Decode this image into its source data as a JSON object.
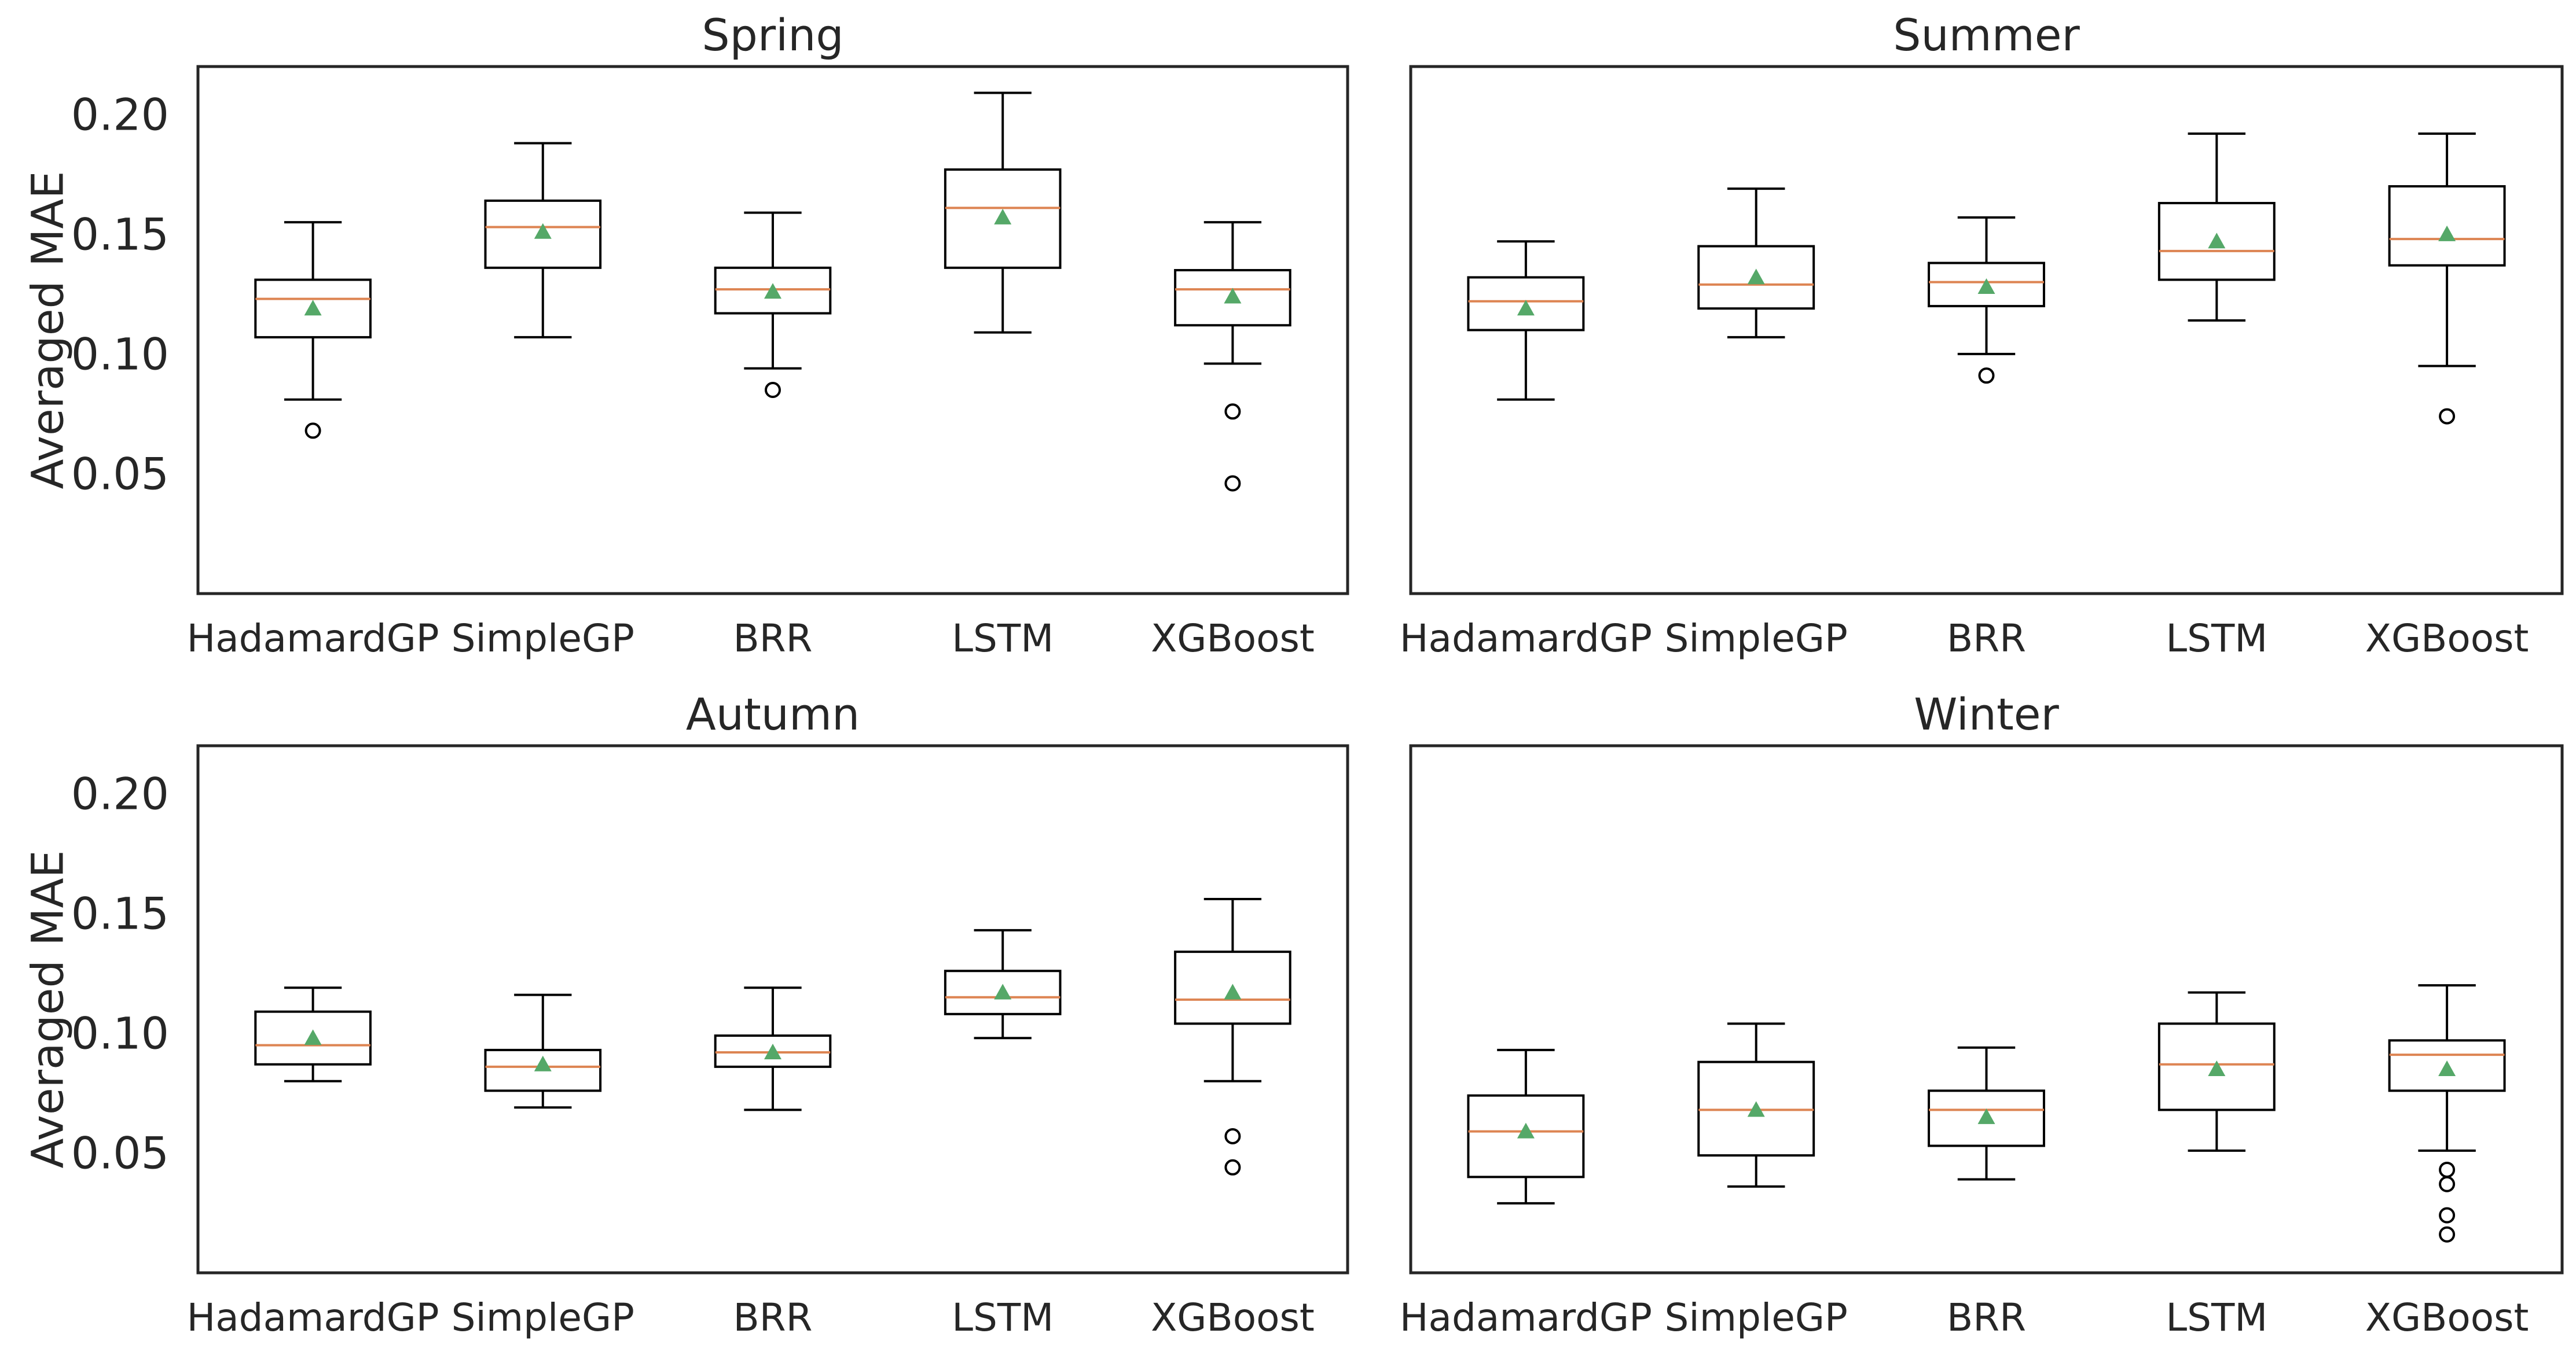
{
  "chart_data": [
    {
      "type": "box",
      "title": "Spring",
      "ylabel": "Averaged MAE",
      "yticks": [
        "0.05",
        "0.10",
        "0.15",
        "0.20"
      ],
      "ylim": [
        0.0,
        0.22
      ],
      "categories": [
        "HadamardGP",
        "SimpleGP",
        "BRR",
        "LSTM",
        "XGBoost"
      ],
      "boxes": [
        {
          "whislo": 0.081,
          "q1": 0.107,
          "med": 0.123,
          "q3": 0.131,
          "whishi": 0.155,
          "mean": 0.119,
          "fliers": [
            0.068
          ]
        },
        {
          "whislo": 0.107,
          "q1": 0.136,
          "med": 0.153,
          "q3": 0.164,
          "whishi": 0.188,
          "mean": 0.151,
          "fliers": []
        },
        {
          "whislo": 0.094,
          "q1": 0.117,
          "med": 0.127,
          "q3": 0.136,
          "whishi": 0.159,
          "mean": 0.126,
          "fliers": [
            0.085
          ]
        },
        {
          "whislo": 0.109,
          "q1": 0.136,
          "med": 0.161,
          "q3": 0.177,
          "whishi": 0.209,
          "mean": 0.157,
          "fliers": []
        },
        {
          "whislo": 0.096,
          "q1": 0.112,
          "med": 0.127,
          "q3": 0.135,
          "whishi": 0.155,
          "mean": 0.124,
          "fliers": [
            0.076,
            0.046
          ]
        }
      ]
    },
    {
      "type": "box",
      "title": "Summer",
      "ylabel": "",
      "yticks": [],
      "ylim": [
        0.0,
        0.22
      ],
      "categories": [
        "HadamardGP",
        "SimpleGP",
        "BRR",
        "LSTM",
        "XGBoost"
      ],
      "boxes": [
        {
          "whislo": 0.081,
          "q1": 0.11,
          "med": 0.122,
          "q3": 0.132,
          "whishi": 0.147,
          "mean": 0.119,
          "fliers": []
        },
        {
          "whislo": 0.107,
          "q1": 0.119,
          "med": 0.129,
          "q3": 0.145,
          "whishi": 0.169,
          "mean": 0.132,
          "fliers": []
        },
        {
          "whislo": 0.1,
          "q1": 0.12,
          "med": 0.13,
          "q3": 0.138,
          "whishi": 0.157,
          "mean": 0.128,
          "fliers": [
            0.091
          ]
        },
        {
          "whislo": 0.114,
          "q1": 0.131,
          "med": 0.143,
          "q3": 0.163,
          "whishi": 0.192,
          "mean": 0.147,
          "fliers": []
        },
        {
          "whislo": 0.095,
          "q1": 0.137,
          "med": 0.148,
          "q3": 0.17,
          "whishi": 0.192,
          "mean": 0.15,
          "fliers": [
            0.074
          ]
        }
      ]
    },
    {
      "type": "box",
      "title": "Autumn",
      "ylabel": "Averaged MAE",
      "yticks": [
        "0.05",
        "0.10",
        "0.15",
        "0.20"
      ],
      "ylim": [
        0.0,
        0.22
      ],
      "categories": [
        "HadamardGP",
        "SimpleGP",
        "BRR",
        "LSTM",
        "XGBoost"
      ],
      "boxes": [
        {
          "whislo": 0.08,
          "q1": 0.087,
          "med": 0.095,
          "q3": 0.109,
          "whishi": 0.119,
          "mean": 0.098,
          "fliers": []
        },
        {
          "whislo": 0.069,
          "q1": 0.076,
          "med": 0.086,
          "q3": 0.093,
          "whishi": 0.116,
          "mean": 0.087,
          "fliers": []
        },
        {
          "whislo": 0.068,
          "q1": 0.086,
          "med": 0.092,
          "q3": 0.099,
          "whishi": 0.119,
          "mean": 0.092,
          "fliers": []
        },
        {
          "whislo": 0.098,
          "q1": 0.108,
          "med": 0.115,
          "q3": 0.126,
          "whishi": 0.143,
          "mean": 0.117,
          "fliers": []
        },
        {
          "whislo": 0.08,
          "q1": 0.104,
          "med": 0.114,
          "q3": 0.134,
          "whishi": 0.156,
          "mean": 0.117,
          "fliers": [
            0.057,
            0.044
          ]
        }
      ]
    },
    {
      "type": "box",
      "title": "Winter",
      "ylabel": "",
      "yticks": [],
      "ylim": [
        0.0,
        0.22
      ],
      "categories": [
        "HadamardGP",
        "SimpleGP",
        "BRR",
        "LSTM",
        "XGBoost"
      ],
      "boxes": [
        {
          "whislo": 0.029,
          "q1": 0.04,
          "med": 0.059,
          "q3": 0.074,
          "whishi": 0.093,
          "mean": 0.059,
          "fliers": []
        },
        {
          "whislo": 0.036,
          "q1": 0.049,
          "med": 0.068,
          "q3": 0.088,
          "whishi": 0.104,
          "mean": 0.068,
          "fliers": []
        },
        {
          "whislo": 0.039,
          "q1": 0.053,
          "med": 0.068,
          "q3": 0.076,
          "whishi": 0.094,
          "mean": 0.065,
          "fliers": []
        },
        {
          "whislo": 0.051,
          "q1": 0.068,
          "med": 0.087,
          "q3": 0.104,
          "whishi": 0.117,
          "mean": 0.085,
          "fliers": []
        },
        {
          "whislo": 0.051,
          "q1": 0.076,
          "med": 0.091,
          "q3": 0.097,
          "whishi": 0.12,
          "mean": 0.085,
          "fliers": [
            0.043,
            0.037,
            0.024,
            0.016
          ]
        }
      ]
    }
  ],
  "colors": {
    "median": "#dd8452",
    "mean_marker": "#55a868",
    "box_edge": "#000000",
    "axis_frame": "#262626",
    "background": "#ffffff"
  }
}
